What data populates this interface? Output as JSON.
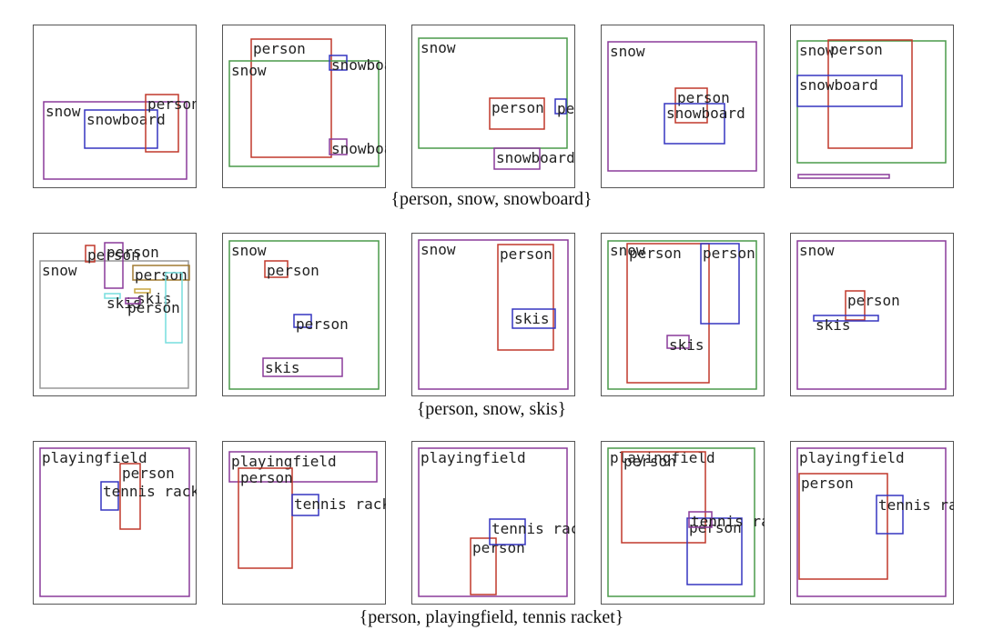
{
  "rows": [
    {
      "caption": "{person, snow, snowboard}",
      "panels": [
        {
          "boxes": [
            {
              "label": "snow"
            },
            {
              "label": "snowboard"
            },
            {
              "label": "person"
            }
          ]
        },
        {
          "boxes": [
            {
              "label": "person"
            },
            {
              "label": "snow"
            },
            {
              "label": "snowboard"
            },
            {
              "label": "snowboard"
            }
          ]
        },
        {
          "boxes": [
            {
              "label": "snow"
            },
            {
              "label": "person"
            },
            {
              "label": "person"
            },
            {
              "label": "snowboard"
            }
          ]
        },
        {
          "boxes": [
            {
              "label": "snow"
            },
            {
              "label": "person"
            },
            {
              "label": "snowboard"
            }
          ]
        },
        {
          "boxes": [
            {
              "label": "snow"
            },
            {
              "label": "person"
            },
            {
              "label": "snowboard"
            }
          ]
        }
      ]
    },
    {
      "caption": "{person, snow, skis}",
      "panels": [
        {
          "boxes": [
            {
              "label": "snow"
            },
            {
              "label": "person"
            },
            {
              "label": "person"
            },
            {
              "label": "person"
            },
            {
              "label": "skis"
            },
            {
              "label": "skis"
            },
            {
              "label": "person"
            }
          ]
        },
        {
          "boxes": [
            {
              "label": "snow"
            },
            {
              "label": "person"
            },
            {
              "label": "person"
            },
            {
              "label": "skis"
            }
          ]
        },
        {
          "boxes": [
            {
              "label": "snow"
            },
            {
              "label": "person"
            },
            {
              "label": "skis"
            }
          ]
        },
        {
          "boxes": [
            {
              "label": "snow"
            },
            {
              "label": "person"
            },
            {
              "label": "person"
            },
            {
              "label": "skis"
            }
          ]
        },
        {
          "boxes": [
            {
              "label": "snow"
            },
            {
              "label": "person"
            },
            {
              "label": "skis"
            }
          ]
        }
      ]
    },
    {
      "caption": "{person, playingfield, tennis racket}",
      "panels": [
        {
          "boxes": [
            {
              "label": "playingfield"
            },
            {
              "label": "person"
            },
            {
              "label": "tennis racket"
            }
          ]
        },
        {
          "boxes": [
            {
              "label": "playingfield"
            },
            {
              "label": "person"
            },
            {
              "label": "tennis racket"
            }
          ]
        },
        {
          "boxes": [
            {
              "label": "playingfield"
            },
            {
              "label": "person"
            },
            {
              "label": "tennis racket"
            }
          ]
        },
        {
          "boxes": [
            {
              "label": "playingfield"
            },
            {
              "label": "person"
            },
            {
              "label": "person"
            },
            {
              "label": "tennis racket"
            }
          ]
        },
        {
          "boxes": [
            {
              "label": "playingfield"
            },
            {
              "label": "person"
            },
            {
              "label": "tennis racket"
            }
          ]
        }
      ]
    }
  ]
}
